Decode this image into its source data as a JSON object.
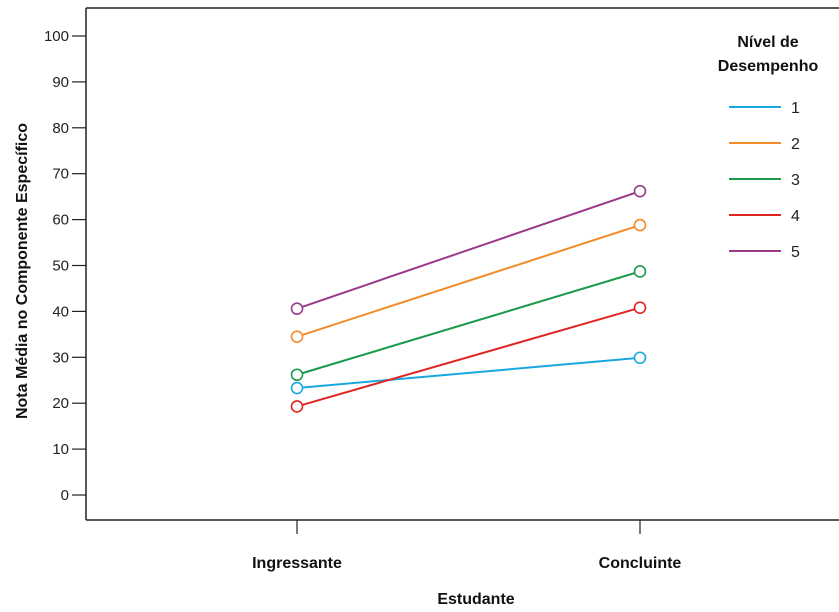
{
  "chart_data": {
    "type": "line",
    "categories": [
      "Ingressante",
      "Concluinte"
    ],
    "xlabel": "Estudante",
    "ylabel": "Nota Média no Componente  Específico",
    "ylim": [
      0,
      100
    ],
    "yticks": [
      0,
      10,
      20,
      30,
      40,
      50,
      60,
      70,
      80,
      90,
      100
    ],
    "grid": false,
    "legend": {
      "title_line1": "Nível de",
      "title_line2": "Desempenho",
      "placement": "top-right"
    },
    "series": [
      {
        "name": "1",
        "color": "#1aa7e0",
        "values": [
          23.3,
          29.9
        ]
      },
      {
        "name": "2",
        "color": "#f28c28",
        "values": [
          34.5,
          58.8
        ]
      },
      {
        "name": "3",
        "color": "#1a9a4a",
        "values": [
          26.2,
          48.7
        ]
      },
      {
        "name": "4",
        "color": "#e02424",
        "values": [
          19.3,
          40.8
        ]
      },
      {
        "name": "5",
        "color": "#9b3a8a",
        "values": [
          40.6,
          66.2
        ]
      }
    ]
  }
}
